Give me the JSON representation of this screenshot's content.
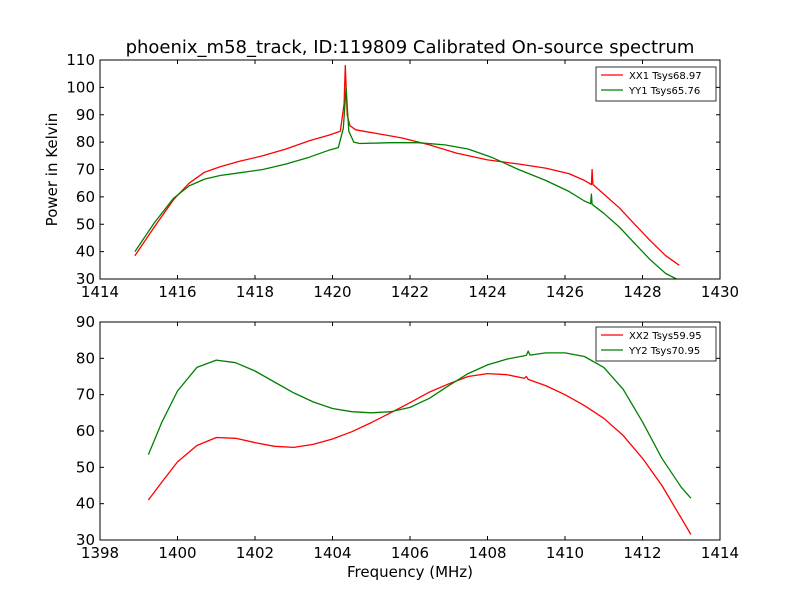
{
  "title": "phoenix_m58_track, ID:119809 Calibrated On-source spectrum",
  "colors": {
    "xx": "#ff0000",
    "yy": "#008000"
  },
  "chart_data": [
    {
      "type": "line",
      "panel": "top",
      "ylabel": "Power in Kelvin",
      "xlabel": "",
      "xlim": [
        1414,
        1430
      ],
      "ylim": [
        30,
        110
      ],
      "xticks": [
        1414,
        1416,
        1418,
        1420,
        1422,
        1424,
        1426,
        1428,
        1430
      ],
      "yticks": [
        30,
        40,
        50,
        60,
        70,
        80,
        90,
        100,
        110
      ],
      "legend_position": "top-right",
      "series": [
        {
          "name": "XX1 Tsys68.97",
          "color": "#ff0000",
          "x": [
            1414.9,
            1415.4,
            1415.9,
            1416.3,
            1416.7,
            1417.1,
            1417.6,
            1418.2,
            1418.8,
            1419.4,
            1419.9,
            1420.2,
            1420.3,
            1420.33,
            1420.38,
            1420.45,
            1420.6,
            1420.8,
            1421.2,
            1421.8,
            1422.5,
            1423.2,
            1424.0,
            1424.8,
            1425.5,
            1426.1,
            1426.5,
            1426.68,
            1426.7,
            1426.72,
            1426.74,
            1427.0,
            1427.4,
            1427.8,
            1428.2,
            1428.6,
            1428.95
          ],
          "y": [
            38.5,
            49,
            59,
            65,
            69,
            71,
            73,
            75,
            77.5,
            80.5,
            82.5,
            84,
            94,
            108,
            90,
            86,
            84.5,
            84,
            83,
            81.5,
            79,
            76,
            73.5,
            72,
            70.5,
            68.5,
            66,
            64.5,
            70,
            64.5,
            64.3,
            61,
            56,
            50,
            44,
            38.5,
            35
          ]
        },
        {
          "name": "YY1 Tsys65.76",
          "color": "#008000",
          "x": [
            1414.9,
            1415.4,
            1415.9,
            1416.3,
            1416.7,
            1417.1,
            1417.6,
            1418.2,
            1418.8,
            1419.4,
            1419.9,
            1420.15,
            1420.28,
            1420.35,
            1420.42,
            1420.55,
            1420.7,
            1421.5,
            1422.2,
            1422.9,
            1423.5,
            1424.1,
            1424.8,
            1425.5,
            1426.1,
            1426.5,
            1426.66,
            1426.68,
            1426.7,
            1427.0,
            1427.4,
            1427.8,
            1428.2,
            1428.6,
            1428.95
          ],
          "y": [
            40,
            50.5,
            59.5,
            64,
            66.5,
            67.8,
            68.8,
            70,
            72,
            74.5,
            77,
            78,
            85,
            100,
            84,
            80,
            79.5,
            79.8,
            79.8,
            79,
            77.5,
            74.5,
            70,
            66,
            62,
            58.5,
            57.5,
            61,
            57.3,
            54,
            49,
            43,
            37,
            32,
            29.5
          ]
        }
      ]
    },
    {
      "type": "line",
      "panel": "bottom",
      "ylabel": "",
      "xlabel": "Frequency (MHz)",
      "xlim": [
        1398,
        1414
      ],
      "ylim": [
        30,
        90
      ],
      "xticks": [
        1398,
        1400,
        1402,
        1404,
        1406,
        1408,
        1410,
        1412,
        1414
      ],
      "yticks": [
        30,
        40,
        50,
        60,
        70,
        80,
        90
      ],
      "legend_position": "top-right",
      "series": [
        {
          "name": "XX2 Tsys59.95",
          "color": "#ff0000",
          "x": [
            1399.25,
            1399.6,
            1400.0,
            1400.5,
            1401.0,
            1401.5,
            1402.0,
            1402.5,
            1403.0,
            1403.5,
            1404.0,
            1404.5,
            1405.0,
            1405.5,
            1406.0,
            1406.5,
            1407.0,
            1407.5,
            1408.0,
            1408.5,
            1408.95,
            1409.0,
            1409.05,
            1409.5,
            1410.0,
            1410.5,
            1411.0,
            1411.5,
            1412.0,
            1412.5,
            1413.0,
            1413.25
          ],
          "y": [
            41,
            46,
            51.5,
            56,
            58.2,
            58,
            56.8,
            55.8,
            55.5,
            56.3,
            57.8,
            59.8,
            62.3,
            65,
            67.8,
            70.7,
            73,
            75,
            75.8,
            75.5,
            74.5,
            75,
            74.2,
            72.5,
            70,
            67,
            63.5,
            58.8,
            52.5,
            45,
            36,
            31.5
          ]
        },
        {
          "name": "YY2 Tsys70.95",
          "color": "#008000",
          "x": [
            1399.25,
            1399.6,
            1400.0,
            1400.5,
            1401.0,
            1401.5,
            1402.0,
            1402.5,
            1403.0,
            1403.5,
            1404.0,
            1404.5,
            1405.0,
            1405.5,
            1406.0,
            1406.5,
            1407.0,
            1407.5,
            1408.0,
            1408.5,
            1409.0,
            1409.05,
            1409.1,
            1409.5,
            1410.0,
            1410.5,
            1411.0,
            1411.5,
            1412.0,
            1412.5,
            1413.0,
            1413.25
          ],
          "y": [
            53.5,
            62.5,
            71,
            77.5,
            79.5,
            78.8,
            76.5,
            73.5,
            70.5,
            68,
            66.2,
            65.3,
            65,
            65.3,
            66.5,
            69,
            72.5,
            75.8,
            78.2,
            79.8,
            80.8,
            82,
            80.9,
            81.5,
            81.5,
            80.5,
            77.5,
            71.5,
            62.5,
            52.5,
            44.5,
            41.5
          ]
        }
      ]
    }
  ]
}
